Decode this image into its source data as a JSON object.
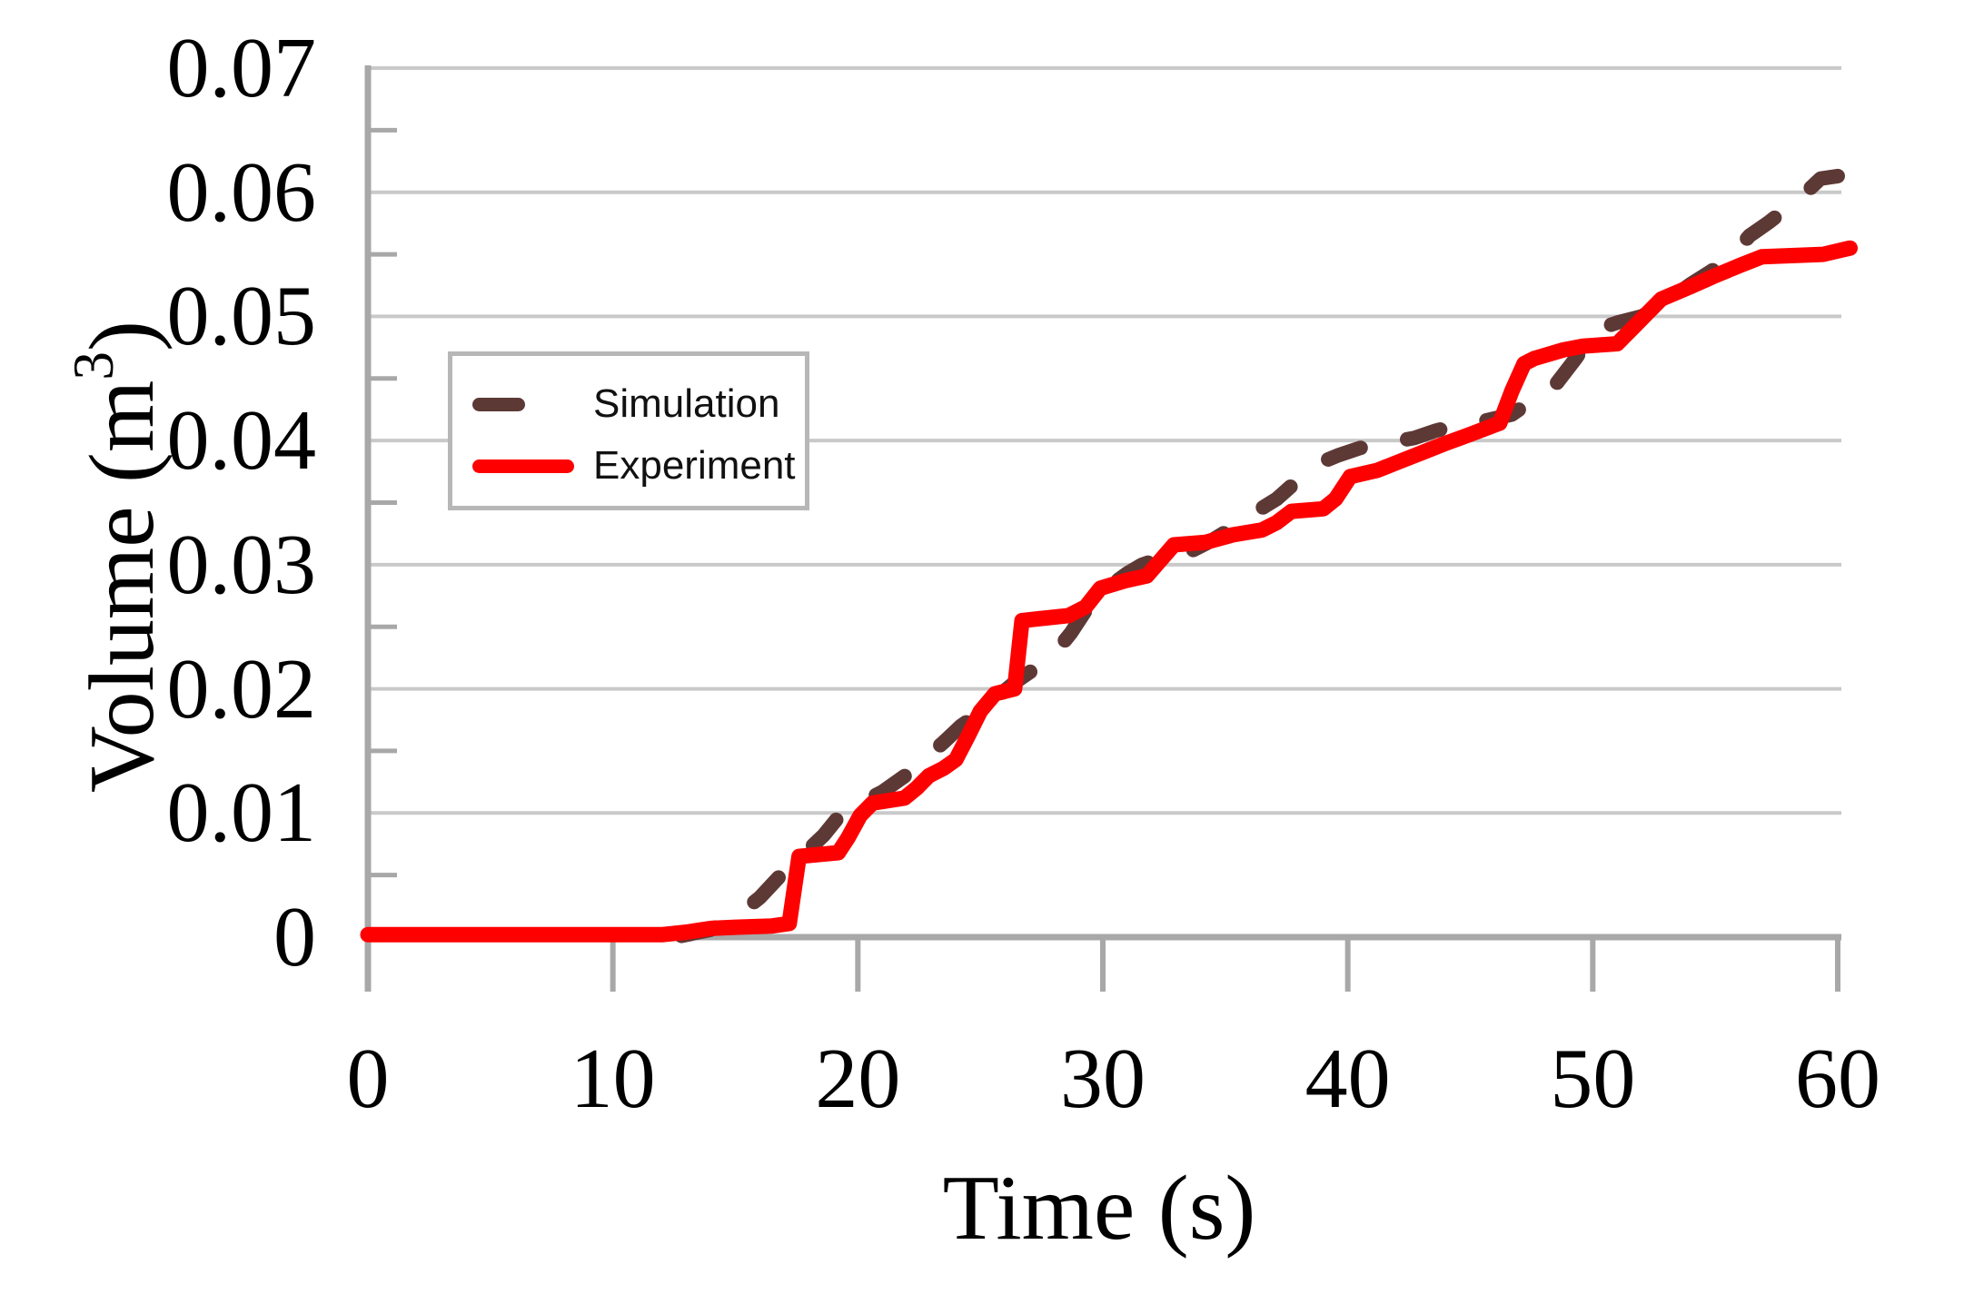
{
  "page": {
    "background": "#ffffff"
  },
  "chart_data": {
    "type": "line",
    "title": "",
    "xlabel": "Time (s)",
    "ylabel": "Volume (m³)",
    "ylabel_parts": {
      "main": "Volume (m",
      "sup": "3",
      "close": ")"
    },
    "xlim": [
      0,
      60
    ],
    "ylim": [
      0,
      0.07
    ],
    "x_ticks": [
      0,
      10,
      20,
      30,
      40,
      50,
      60
    ],
    "x_tick_labels": [
      "0",
      "10",
      "20",
      "30",
      "40",
      "50",
      "60"
    ],
    "y_ticks": [
      0,
      0.01,
      0.02,
      0.03,
      0.04,
      0.05,
      0.06,
      0.07
    ],
    "y_tick_labels": [
      "0",
      "0.01",
      "0.02",
      "0.03",
      "0.04",
      "0.05",
      "0.06",
      "0.07"
    ],
    "y_minor_tick_step": 0.005,
    "grid": "horizontal-major",
    "legend": {
      "position": "upper-left",
      "items": [
        "Simulation",
        "Experiment"
      ]
    },
    "colors": {
      "axis": "#a8a8a8",
      "gridline": "#c9c9c9",
      "simulation": "#5d3936",
      "experiment": "#fe0000",
      "text": "#000000"
    },
    "series": [
      {
        "name": "Simulation",
        "color": "#5d3936",
        "line_style": "dashed",
        "points": [
          [
            12.8,
            0.0001
          ],
          [
            14,
            0.0006
          ],
          [
            15,
            0.0016
          ],
          [
            16,
            0.0032
          ],
          [
            17,
            0.0053
          ],
          [
            17.8,
            0.0067
          ],
          [
            18.6,
            0.0082
          ],
          [
            19.3,
            0.0099
          ],
          [
            20.3,
            0.011
          ],
          [
            21,
            0.0117
          ],
          [
            22,
            0.0131
          ],
          [
            22.7,
            0.0143
          ],
          [
            23.5,
            0.0157
          ],
          [
            24.2,
            0.017
          ],
          [
            25,
            0.0181
          ],
          [
            25.6,
            0.0192
          ],
          [
            26.4,
            0.0205
          ],
          [
            27.2,
            0.0216
          ],
          [
            28,
            0.0228
          ],
          [
            28.7,
            0.0245
          ],
          [
            29.6,
            0.0272
          ],
          [
            30.3,
            0.0283
          ],
          [
            31,
            0.0293
          ],
          [
            31.6,
            0.03
          ],
          [
            32.5,
            0.0306
          ],
          [
            33.4,
            0.0309
          ],
          [
            34.4,
            0.0319
          ],
          [
            35.4,
            0.0331
          ],
          [
            36.2,
            0.0342
          ],
          [
            37.1,
            0.0353
          ],
          [
            37.9,
            0.0367
          ],
          [
            38.6,
            0.038
          ],
          [
            39.6,
            0.0388
          ],
          [
            40.5,
            0.0394
          ],
          [
            41.6,
            0.0398
          ],
          [
            42.7,
            0.0402
          ],
          [
            43.6,
            0.0408
          ],
          [
            44.6,
            0.0413
          ],
          [
            45.6,
            0.0416
          ],
          [
            46.7,
            0.0421
          ],
          [
            47.5,
            0.0432
          ],
          [
            48.4,
            0.0443
          ],
          [
            49.3,
            0.0466
          ],
          [
            50.1,
            0.0489
          ],
          [
            51,
            0.0495
          ],
          [
            52,
            0.05
          ],
          [
            53,
            0.0512
          ],
          [
            54,
            0.0526
          ],
          [
            54.8,
            0.0536
          ],
          [
            55.5,
            0.0545
          ],
          [
            56.4,
            0.0565
          ],
          [
            57.2,
            0.0576
          ],
          [
            57.9,
            0.0587
          ],
          [
            58.6,
            0.0598
          ],
          [
            59.3,
            0.0611
          ],
          [
            60,
            0.0613
          ]
        ]
      },
      {
        "name": "Experiment",
        "color": "#fe0000",
        "line_style": "solid",
        "points": [
          [
            0,
            0.0002
          ],
          [
            12,
            0.0002
          ],
          [
            13,
            0.0004
          ],
          [
            14,
            0.0007
          ],
          [
            15,
            0.0008
          ],
          [
            16.5,
            0.0009
          ],
          [
            17.2,
            0.0011
          ],
          [
            17.6,
            0.0065
          ],
          [
            19.2,
            0.0068
          ],
          [
            19.6,
            0.008
          ],
          [
            20.1,
            0.0098
          ],
          [
            20.6,
            0.0108
          ],
          [
            21.9,
            0.0112
          ],
          [
            22.4,
            0.012
          ],
          [
            22.9,
            0.013
          ],
          [
            23.5,
            0.0136
          ],
          [
            24,
            0.0143
          ],
          [
            24.5,
            0.0162
          ],
          [
            25,
            0.0182
          ],
          [
            25.6,
            0.0196
          ],
          [
            26.4,
            0.02
          ],
          [
            26.7,
            0.0255
          ],
          [
            28.6,
            0.0259
          ],
          [
            29.3,
            0.0266
          ],
          [
            29.9,
            0.0281
          ],
          [
            30.9,
            0.0287
          ],
          [
            31.8,
            0.0291
          ],
          [
            32.9,
            0.0316
          ],
          [
            34.2,
            0.0318
          ],
          [
            35.3,
            0.0324
          ],
          [
            36.5,
            0.0328
          ],
          [
            37.1,
            0.0334
          ],
          [
            37.7,
            0.0343
          ],
          [
            39,
            0.0345
          ],
          [
            39.5,
            0.0353
          ],
          [
            40.1,
            0.0371
          ],
          [
            41.2,
            0.0376
          ],
          [
            42.1,
            0.0383
          ],
          [
            43,
            0.039
          ],
          [
            43.9,
            0.0397
          ],
          [
            45,
            0.0405
          ],
          [
            46.2,
            0.0414
          ],
          [
            46.7,
            0.044
          ],
          [
            47.2,
            0.0462
          ],
          [
            47.6,
            0.0466
          ],
          [
            48.8,
            0.0473
          ],
          [
            49.6,
            0.0476
          ],
          [
            51,
            0.0478
          ],
          [
            51.7,
            0.0492
          ],
          [
            52.8,
            0.0514
          ],
          [
            54,
            0.0524
          ],
          [
            54.9,
            0.0532
          ],
          [
            56,
            0.0541
          ],
          [
            56.9,
            0.0548
          ],
          [
            59.4,
            0.055
          ],
          [
            60.5,
            0.0555
          ]
        ]
      }
    ]
  }
}
